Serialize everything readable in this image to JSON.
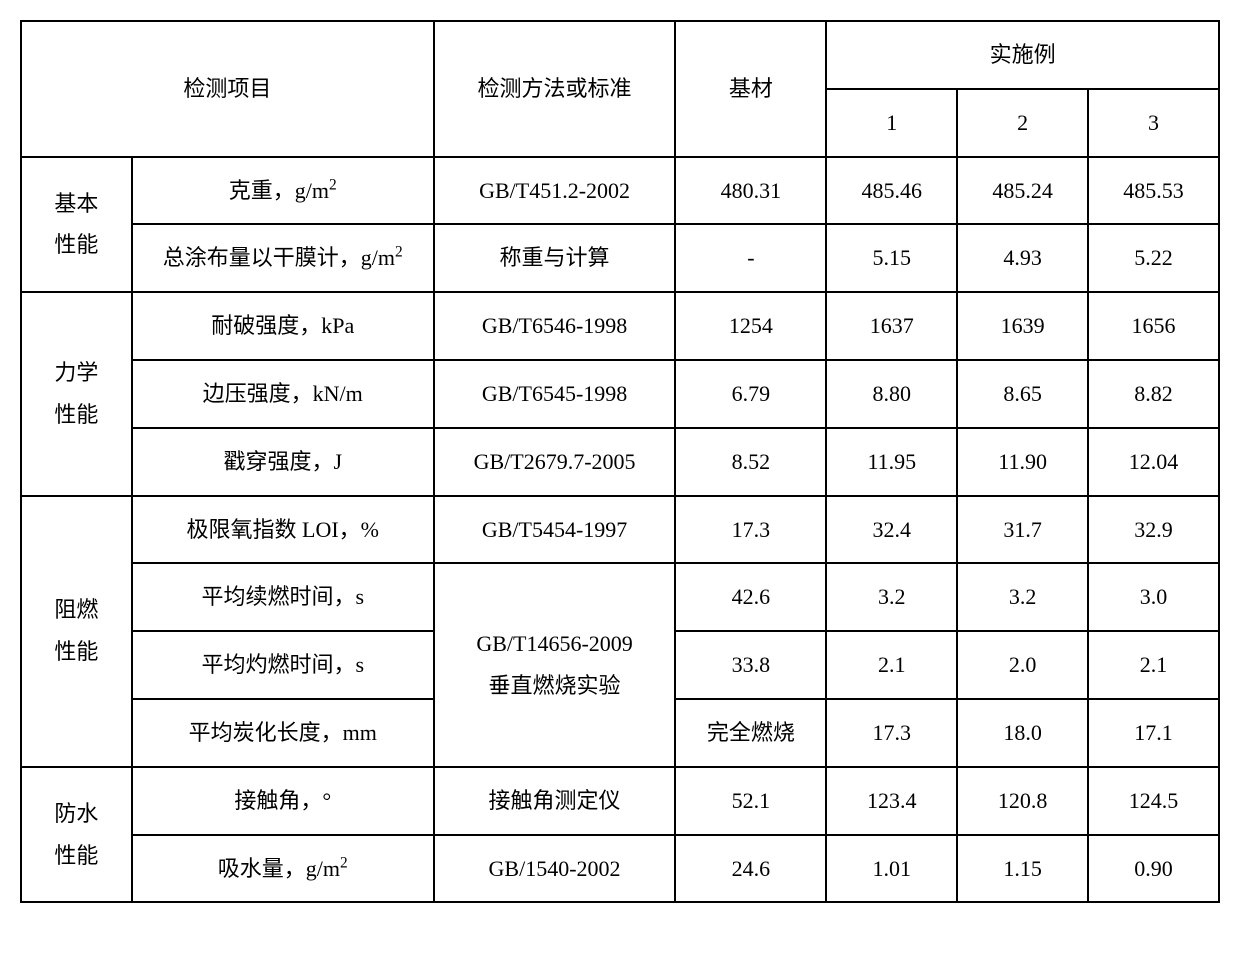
{
  "table": {
    "headers": {
      "test_item": "检测项目",
      "method": "检测方法或标准",
      "base": "基材",
      "examples": "实施例",
      "ex1": "1",
      "ex2": "2",
      "ex3": "3"
    },
    "categories": {
      "basic": "基本\n性能",
      "mechanical": "力学\n性能",
      "flame": "阻燃\n性能",
      "water": "防水\n性能"
    },
    "rows": [
      {
        "item_html": "克重，g/m<sup>2</sup>",
        "method": "GB/T451.2-2002",
        "base": "480.31",
        "v1": "485.46",
        "v2": "485.24",
        "v3": "485.53"
      },
      {
        "item_html": "总涂布量以干膜计，g/m<sup>2</sup>",
        "method": "称重与计算",
        "base": "-",
        "v1": "5.15",
        "v2": "4.93",
        "v3": "5.22"
      },
      {
        "item_html": "耐破强度，kPa",
        "method": "GB/T6546-1998",
        "base": "1254",
        "v1": "1637",
        "v2": "1639",
        "v3": "1656"
      },
      {
        "item_html": "边压强度，kN/m",
        "method": "GB/T6545-1998",
        "base": "6.79",
        "v1": "8.80",
        "v2": "8.65",
        "v3": "8.82"
      },
      {
        "item_html": "戳穿强度，J",
        "method": "GB/T2679.7-2005",
        "base": "8.52",
        "v1": "11.95",
        "v2": "11.90",
        "v3": "12.04"
      },
      {
        "item_html": "极限氧指数 LOI，%",
        "method": "GB/T5454-1997",
        "base": "17.3",
        "v1": "32.4",
        "v2": "31.7",
        "v3": "32.9"
      },
      {
        "item_html": "平均续燃时间，s",
        "method": "GB/T14656-2009\n垂直燃烧实验",
        "base": "42.6",
        "v1": "3.2",
        "v2": "3.2",
        "v3": "3.0"
      },
      {
        "item_html": "平均灼燃时间，s",
        "method": "",
        "base": "33.8",
        "v1": "2.1",
        "v2": "2.0",
        "v3": "2.1"
      },
      {
        "item_html": "平均炭化长度，mm",
        "method": "",
        "base": "完全燃烧",
        "v1": "17.3",
        "v2": "18.0",
        "v3": "17.1"
      },
      {
        "item_html": "接触角，°",
        "method": "接触角测定仪",
        "base": "52.1",
        "v1": "123.4",
        "v2": "120.8",
        "v3": "124.5"
      },
      {
        "item_html": "吸水量，g/m<sup>2</sup>",
        "method": "GB/1540-2002",
        "base": "24.6",
        "v1": "1.01",
        "v2": "1.15",
        "v3": "0.90"
      }
    ],
    "styles": {
      "border_color": "#000000",
      "bg_color": "#ffffff",
      "text_color": "#000000",
      "font_family": "SimSun",
      "cell_fontsize": 22,
      "col_widths": {
        "cat": 110,
        "item": 300,
        "method": 240,
        "base": 150,
        "ex": 130
      }
    }
  }
}
